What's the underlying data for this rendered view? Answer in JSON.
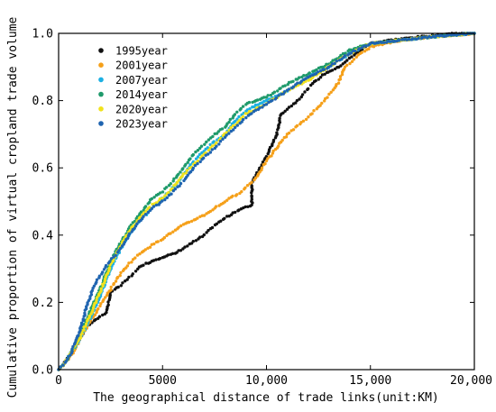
{
  "chart_data": {
    "type": "scatter",
    "xlabel": "The geographical distance of trade links(unit:KM)",
    "ylabel": "Cumulative proportion of virtual cropland trade volume",
    "xlim": [
      0,
      20000
    ],
    "ylim": [
      0,
      1.0
    ],
    "x_ticks": [
      0,
      5000,
      10000,
      15000,
      20000
    ],
    "x_tick_labels": [
      "0",
      "5000",
      "10,000",
      "15,000",
      "20,000"
    ],
    "y_ticks": [
      0,
      0.2,
      0.4,
      0.6,
      0.8,
      1.0
    ],
    "y_tick_labels": [
      "0.0",
      "0.2",
      "0.4",
      "0.6",
      "0.8",
      "1.0"
    ],
    "grid": false,
    "legend_position": "top-left",
    "series": [
      {
        "name": "1995year",
        "color": "#111111",
        "points": [
          [
            0,
            0
          ],
          [
            300,
            0.02
          ],
          [
            600,
            0.05
          ],
          [
            1000,
            0.09
          ],
          [
            1400,
            0.13
          ],
          [
            1800,
            0.15
          ],
          [
            2300,
            0.17
          ],
          [
            2500,
            0.23
          ],
          [
            3000,
            0.25
          ],
          [
            3500,
            0.28
          ],
          [
            4000,
            0.31
          ],
          [
            5000,
            0.335
          ],
          [
            5600,
            0.345
          ],
          [
            6000,
            0.36
          ],
          [
            6500,
            0.38
          ],
          [
            7000,
            0.4
          ],
          [
            7500,
            0.43
          ],
          [
            8500,
            0.47
          ],
          [
            9300,
            0.49
          ],
          [
            9300,
            0.56
          ],
          [
            9800,
            0.61
          ],
          [
            10200,
            0.66
          ],
          [
            10500,
            0.7
          ],
          [
            10700,
            0.76
          ],
          [
            11500,
            0.8
          ],
          [
            12200,
            0.85
          ],
          [
            12800,
            0.88
          ],
          [
            13500,
            0.9
          ],
          [
            14300,
            0.94
          ],
          [
            15000,
            0.97
          ],
          [
            16000,
            0.98
          ],
          [
            17500,
            0.99
          ],
          [
            19000,
            1.0
          ],
          [
            20000,
            1.0
          ]
        ]
      },
      {
        "name": "2001year",
        "color": "#f5a01a",
        "points": [
          [
            0,
            0
          ],
          [
            300,
            0.02
          ],
          [
            700,
            0.05
          ],
          [
            1000,
            0.09
          ],
          [
            1400,
            0.13
          ],
          [
            1800,
            0.17
          ],
          [
            2300,
            0.22
          ],
          [
            2800,
            0.27
          ],
          [
            3300,
            0.31
          ],
          [
            4000,
            0.35
          ],
          [
            5000,
            0.39
          ],
          [
            6000,
            0.43
          ],
          [
            7000,
            0.46
          ],
          [
            8000,
            0.5
          ],
          [
            8800,
            0.53
          ],
          [
            9500,
            0.57
          ],
          [
            10000,
            0.62
          ],
          [
            10500,
            0.66
          ],
          [
            11000,
            0.7
          ],
          [
            11800,
            0.74
          ],
          [
            12500,
            0.78
          ],
          [
            13200,
            0.83
          ],
          [
            13500,
            0.86
          ],
          [
            13800,
            0.9
          ],
          [
            14300,
            0.93
          ],
          [
            15000,
            0.96
          ],
          [
            16500,
            0.98
          ],
          [
            18000,
            0.99
          ],
          [
            20000,
            1.0
          ]
        ]
      },
      {
        "name": "2007year",
        "color": "#1cb0e3",
        "points": [
          [
            0,
            0
          ],
          [
            300,
            0.02
          ],
          [
            600,
            0.05
          ],
          [
            1000,
            0.09
          ],
          [
            1500,
            0.15
          ],
          [
            2000,
            0.22
          ],
          [
            2500,
            0.3
          ],
          [
            3000,
            0.36
          ],
          [
            3500,
            0.41
          ],
          [
            4000,
            0.45
          ],
          [
            4500,
            0.48
          ],
          [
            5000,
            0.51
          ],
          [
            5500,
            0.54
          ],
          [
            6000,
            0.58
          ],
          [
            6500,
            0.62
          ],
          [
            7000,
            0.65
          ],
          [
            7500,
            0.68
          ],
          [
            8000,
            0.7
          ],
          [
            8500,
            0.74
          ],
          [
            9000,
            0.77
          ],
          [
            10000,
            0.8
          ],
          [
            11000,
            0.83
          ],
          [
            12000,
            0.87
          ],
          [
            13000,
            0.9
          ],
          [
            14000,
            0.94
          ],
          [
            15000,
            0.97
          ],
          [
            16500,
            0.98
          ],
          [
            18000,
            0.99
          ],
          [
            20000,
            1.0
          ]
        ]
      },
      {
        "name": "2014year",
        "color": "#1f9a6b",
        "points": [
          [
            0,
            0
          ],
          [
            300,
            0.02
          ],
          [
            600,
            0.05
          ],
          [
            1000,
            0.1
          ],
          [
            1500,
            0.17
          ],
          [
            2000,
            0.24
          ],
          [
            2500,
            0.32
          ],
          [
            3000,
            0.38
          ],
          [
            3500,
            0.43
          ],
          [
            4000,
            0.47
          ],
          [
            4500,
            0.51
          ],
          [
            5000,
            0.53
          ],
          [
            5500,
            0.56
          ],
          [
            6000,
            0.6
          ],
          [
            6500,
            0.64
          ],
          [
            7000,
            0.67
          ],
          [
            7500,
            0.7
          ],
          [
            8000,
            0.72
          ],
          [
            8500,
            0.76
          ],
          [
            9000,
            0.79
          ],
          [
            10000,
            0.81
          ],
          [
            11000,
            0.85
          ],
          [
            12000,
            0.88
          ],
          [
            13000,
            0.91
          ],
          [
            14000,
            0.95
          ],
          [
            15000,
            0.97
          ],
          [
            16500,
            0.98
          ],
          [
            18000,
            0.99
          ],
          [
            20000,
            1.0
          ]
        ]
      },
      {
        "name": "2020year",
        "color": "#f1e21c",
        "points": [
          [
            0,
            0
          ],
          [
            300,
            0.02
          ],
          [
            600,
            0.05
          ],
          [
            1000,
            0.09
          ],
          [
            1500,
            0.16
          ],
          [
            2000,
            0.23
          ],
          [
            2500,
            0.31
          ],
          [
            3000,
            0.37
          ],
          [
            3500,
            0.42
          ],
          [
            4000,
            0.46
          ],
          [
            4500,
            0.49
          ],
          [
            5000,
            0.51
          ],
          [
            5500,
            0.54
          ],
          [
            6000,
            0.58
          ],
          [
            6500,
            0.61
          ],
          [
            7000,
            0.64
          ],
          [
            7500,
            0.67
          ],
          [
            8000,
            0.7
          ],
          [
            8500,
            0.73
          ],
          [
            9000,
            0.76
          ],
          [
            10000,
            0.79
          ],
          [
            11000,
            0.83
          ],
          [
            12000,
            0.86
          ],
          [
            13000,
            0.9
          ],
          [
            14000,
            0.94
          ],
          [
            15000,
            0.97
          ],
          [
            16500,
            0.98
          ],
          [
            18000,
            0.99
          ],
          [
            20000,
            1.0
          ]
        ]
      },
      {
        "name": "2023year",
        "color": "#1f64b0",
        "points": [
          [
            0,
            0
          ],
          [
            300,
            0.02
          ],
          [
            600,
            0.05
          ],
          [
            1000,
            0.11
          ],
          [
            1400,
            0.2
          ],
          [
            1800,
            0.26
          ],
          [
            2300,
            0.31
          ],
          [
            3000,
            0.36
          ],
          [
            3500,
            0.41
          ],
          [
            4000,
            0.45
          ],
          [
            4500,
            0.48
          ],
          [
            5000,
            0.5
          ],
          [
            5500,
            0.53
          ],
          [
            6000,
            0.56
          ],
          [
            6500,
            0.6
          ],
          [
            7000,
            0.63
          ],
          [
            7500,
            0.66
          ],
          [
            8000,
            0.69
          ],
          [
            8500,
            0.72
          ],
          [
            9000,
            0.75
          ],
          [
            10000,
            0.79
          ],
          [
            11000,
            0.83
          ],
          [
            12000,
            0.87
          ],
          [
            13000,
            0.9
          ],
          [
            14000,
            0.94
          ],
          [
            15000,
            0.97
          ],
          [
            16500,
            0.98
          ],
          [
            18000,
            0.99
          ],
          [
            20000,
            1.0
          ]
        ]
      }
    ]
  }
}
